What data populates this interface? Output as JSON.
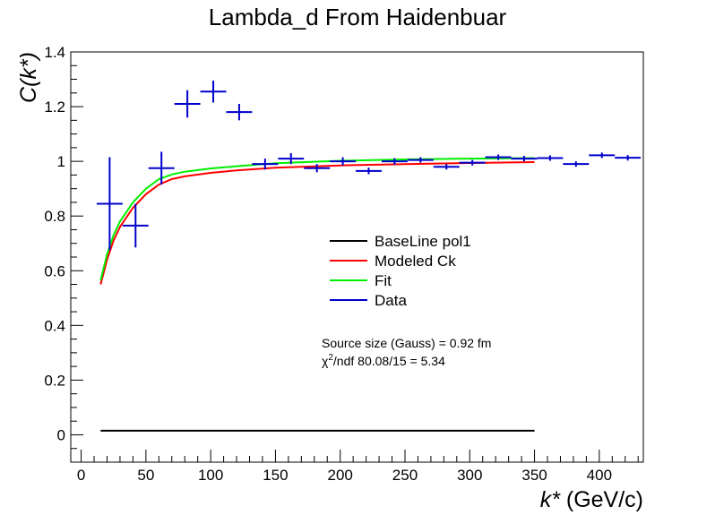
{
  "chart_data": {
    "type": "line",
    "title": "Lambda_d From Haidenbuar",
    "xlabel": "k* (GeV/c)",
    "ylabel": "C(k*)",
    "xlim": [
      -8,
      434
    ],
    "ylim": [
      -0.1,
      1.4
    ],
    "x_ticks": [
      0,
      50,
      100,
      150,
      200,
      250,
      300,
      350,
      400
    ],
    "y_ticks": [
      0,
      0.2,
      0.4,
      0.6,
      0.8,
      1,
      1.2,
      1.4
    ],
    "x_tick_labels": [
      "0",
      "50",
      "100",
      "150",
      "200",
      "250",
      "300",
      "350",
      "400"
    ],
    "y_tick_labels": [
      "0",
      "0.2",
      "0.4",
      "0.6",
      "0.8",
      "1",
      "1.2",
      "1.4"
    ],
    "grid": false,
    "legend_position": "center-right",
    "series": [
      {
        "name": "BaseLine pol1",
        "color": "#000000",
        "kind": "line",
        "x": [
          15,
          350
        ],
        "y": [
          0.015,
          0.015
        ]
      },
      {
        "name": "Modeled Ck",
        "color": "#ff0000",
        "kind": "line",
        "x": [
          15,
          20,
          25,
          30,
          40,
          50,
          60,
          70,
          80,
          100,
          120,
          150,
          200,
          250,
          300,
          350
        ],
        "y": [
          0.55,
          0.64,
          0.71,
          0.76,
          0.83,
          0.88,
          0.915,
          0.935,
          0.945,
          0.958,
          0.967,
          0.977,
          0.985,
          0.99,
          0.994,
          0.997
        ]
      },
      {
        "name": "Fit",
        "color": "#00ee00",
        "kind": "line",
        "x": [
          15,
          20,
          25,
          30,
          40,
          50,
          60,
          70,
          80,
          100,
          120,
          150,
          200,
          250,
          300,
          350
        ],
        "y": [
          0.565,
          0.66,
          0.73,
          0.78,
          0.85,
          0.9,
          0.935,
          0.952,
          0.962,
          0.974,
          0.982,
          0.993,
          1.002,
          1.007,
          1.01,
          1.012
        ]
      },
      {
        "name": "Data",
        "color": "#0000cc",
        "kind": "points",
        "points": [
          {
            "x": 22,
            "y": 0.845,
            "ex": 10,
            "ey": 0.17
          },
          {
            "x": 42,
            "y": 0.765,
            "ex": 10,
            "ey": 0.08
          },
          {
            "x": 62,
            "y": 0.975,
            "ex": 10,
            "ey": 0.06
          },
          {
            "x": 82,
            "y": 1.21,
            "ex": 10,
            "ey": 0.05
          },
          {
            "x": 102,
            "y": 1.255,
            "ex": 10,
            "ey": 0.04
          },
          {
            "x": 122,
            "y": 1.18,
            "ex": 10,
            "ey": 0.03
          },
          {
            "x": 142,
            "y": 0.99,
            "ex": 10,
            "ey": 0.02
          },
          {
            "x": 162,
            "y": 1.01,
            "ex": 10,
            "ey": 0.02
          },
          {
            "x": 182,
            "y": 0.975,
            "ex": 10,
            "ey": 0.015
          },
          {
            "x": 202,
            "y": 1.0,
            "ex": 10,
            "ey": 0.015
          },
          {
            "x": 222,
            "y": 0.965,
            "ex": 10,
            "ey": 0.012
          },
          {
            "x": 242,
            "y": 1.0,
            "ex": 10,
            "ey": 0.012
          },
          {
            "x": 262,
            "y": 1.005,
            "ex": 10,
            "ey": 0.01
          },
          {
            "x": 282,
            "y": 0.98,
            "ex": 10,
            "ey": 0.01
          },
          {
            "x": 302,
            "y": 0.995,
            "ex": 10,
            "ey": 0.01
          },
          {
            "x": 322,
            "y": 1.015,
            "ex": 10,
            "ey": 0.01
          },
          {
            "x": 342,
            "y": 1.01,
            "ex": 10,
            "ey": 0.01
          },
          {
            "x": 362,
            "y": 1.012,
            "ex": 10,
            "ey": 0.01
          },
          {
            "x": 382,
            "y": 0.99,
            "ex": 10,
            "ey": 0.01
          },
          {
            "x": 402,
            "y": 1.022,
            "ex": 10,
            "ey": 0.01
          },
          {
            "x": 422,
            "y": 1.013,
            "ex": 10,
            "ey": 0.01
          }
        ]
      }
    ],
    "annotations": [
      {
        "text": "Source size (Gauss) = 0.92 fm"
      },
      {
        "text_prefix": "χ",
        "superscript": "2",
        "text_suffix": "/ndf 80.08/15 = 5.34"
      }
    ]
  }
}
